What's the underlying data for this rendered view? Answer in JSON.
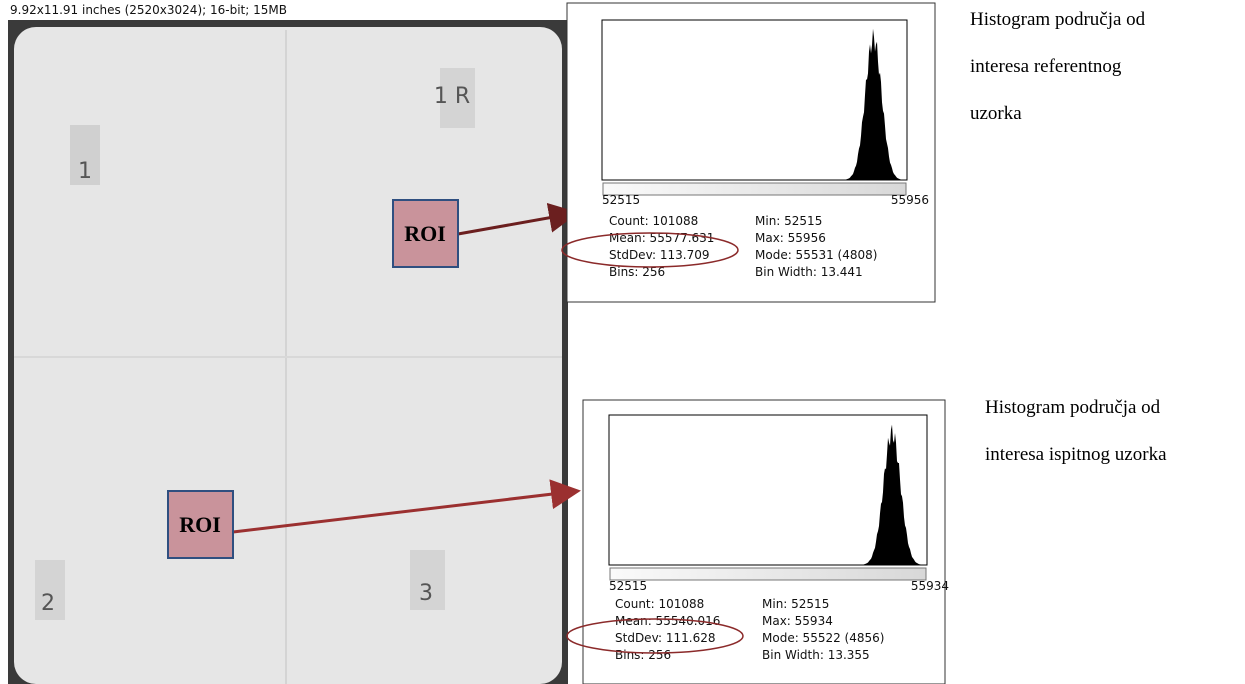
{
  "image": {
    "caption": "9.92x11.91 inches (2520x3024); 16-bit; 15MB",
    "markers": [
      "1",
      "1 R",
      "2",
      "3"
    ],
    "roi": [
      "ROI",
      "ROI"
    ]
  },
  "histograms": [
    {
      "min_label": "52515",
      "max_label": "55956",
      "stats": [
        [
          "Count: 101088",
          "Min: 52515"
        ],
        [
          "Mean: 55577.631",
          "Max: 55956"
        ],
        [
          "StdDev: 113.709",
          "Mode: 55531 (4808)"
        ],
        [
          "Bins: 256",
          "Bin Width: 13.441"
        ]
      ],
      "caption": [
        "Histogram područja od",
        "interesa referentnog",
        "uzorka"
      ]
    },
    {
      "min_label": "52515",
      "max_label": "55934",
      "stats": [
        [
          "Count: 101088",
          "Min: 52515"
        ],
        [
          "Mean: 55540.016",
          "Max: 55934"
        ],
        [
          "StdDev: 111.628",
          "Mode: 55522 (4856)"
        ],
        [
          "Bins: 256",
          "Bin Width: 13.355"
        ]
      ],
      "caption": [
        "Histogram područja od",
        "interesa ispitnog uzorka"
      ]
    }
  ]
}
